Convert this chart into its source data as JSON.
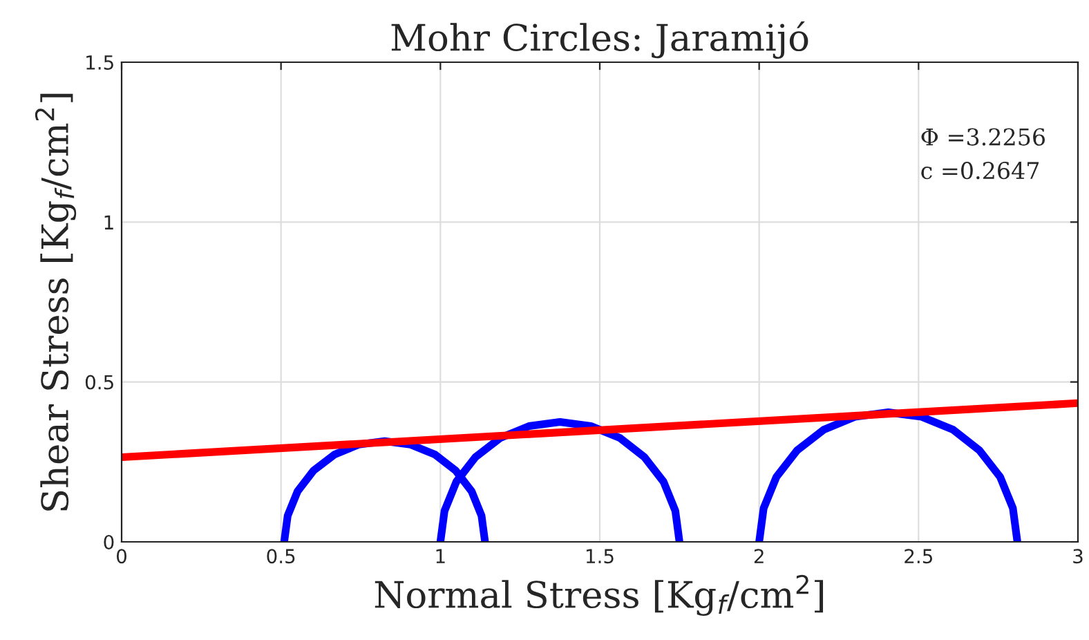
{
  "chart_data": {
    "type": "line",
    "title": "Mohr Circles: Jaramijó",
    "xlabel": "Normal Stress [Kg$_{f}$/cm$^{2}$]",
    "ylabel": "Shear Stress [Kg$_{f}$/cm$^{2}$]",
    "series": [
      {
        "color": "#0000ff",
        "x": [
          1.14,
          1.129,
          1.098,
          1.048,
          0.983,
          0.907,
          0.825,
          0.743,
          0.668,
          0.602,
          0.552,
          0.521,
          0.51
        ],
        "values": [
          0,
          0.082,
          0.158,
          0.223,
          0.273,
          0.304,
          0.315,
          0.304,
          0.273,
          0.223,
          0.158,
          0.082,
          0
        ]
      },
      {
        "color": "#0000ff",
        "x": [
          1.75,
          1.737,
          1.7,
          1.64,
          1.563,
          1.472,
          1.375,
          1.278,
          1.188,
          1.11,
          1.05,
          1.013,
          1.0
        ],
        "values": [
          0,
          0.097,
          0.188,
          0.265,
          0.325,
          0.362,
          0.375,
          0.362,
          0.325,
          0.265,
          0.188,
          0.097,
          0
        ]
      },
      {
        "color": "#0000ff",
        "x": [
          2.81,
          2.796,
          2.756,
          2.691,
          2.608,
          2.51,
          2.405,
          2.3,
          2.203,
          2.119,
          2.054,
          2.014,
          2.0
        ],
        "values": [
          0,
          0.105,
          0.203,
          0.286,
          0.351,
          0.391,
          0.405,
          0.391,
          0.351,
          0.286,
          0.203,
          0.105,
          0
        ]
      },
      {
        "color": "#ff0000",
        "x": [
          0,
          3
        ],
        "values": [
          0.2647,
          0.4338
        ]
      }
    ],
    "annotations": [
      "Φ =3.2256",
      "c =0.2647"
    ],
    "xlim": [
      0,
      3
    ],
    "xticks": [
      0,
      0.5,
      1,
      1.5,
      2,
      2.5,
      3
    ],
    "ylim": [
      0,
      1.5
    ],
    "yticks": [
      0,
      0.5,
      1,
      1.5
    ],
    "grid": true
  }
}
